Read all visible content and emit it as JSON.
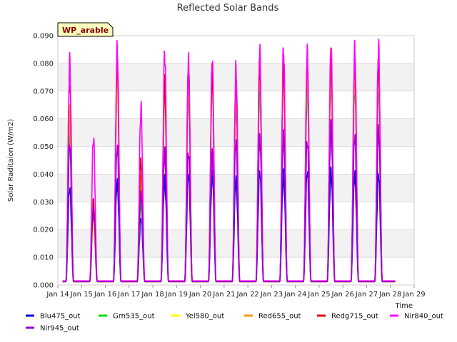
{
  "chart_data": {
    "type": "line",
    "title": "Reflected Solar Bands",
    "xlabel": "Time",
    "ylabel": "Solar Raditaion (W/m2)",
    "badge": "WP_arable",
    "ylim": [
      0.0,
      0.09
    ],
    "yticks": [
      "0.000",
      "0.010",
      "0.020",
      "0.030",
      "0.040",
      "0.050",
      "0.060",
      "0.070",
      "0.080",
      "0.090"
    ],
    "xlim": [
      14,
      29
    ],
    "xticks": [
      "Jan 14",
      "Jan 15",
      "Jan 16",
      "Jan 17",
      "Jan 18",
      "Jan 19",
      "Jan 20",
      "Jan 21",
      "Jan 22",
      "Jan 23",
      "Jan 24",
      "Jan 25",
      "Jan 26",
      "Jan 27",
      "Jan 28",
      "Jan 29"
    ],
    "day_centers": [
      14.5,
      15.5,
      16.5,
      17.5,
      18.5,
      19.5,
      20.5,
      21.5,
      22.5,
      23.5,
      24.5,
      25.5,
      26.5,
      27.5
    ],
    "series": [
      {
        "name": "Blu475_out",
        "color": "#0000dd",
        "baseline": 0.0012,
        "peaks": [
          0.035,
          0.023,
          0.037,
          0.024,
          0.038,
          0.04,
          0.04,
          0.038,
          0.041,
          0.04,
          0.041,
          0.041,
          0.04,
          0.04
        ]
      },
      {
        "name": "Grn535_out",
        "color": "#00dd00",
        "baseline": 0.0012,
        "peaks": [
          0.052,
          0.025,
          0.075,
          0.03,
          0.065,
          0.07,
          0.07,
          0.065,
          0.07,
          0.072,
          0.072,
          0.072,
          0.072,
          0.072
        ]
      },
      {
        "name": "Yel580_out",
        "color": "#ffff00",
        "baseline": 0.0012,
        "peaks": [
          0.058,
          0.022,
          0.072,
          0.036,
          0.068,
          0.072,
          0.072,
          0.068,
          0.075,
          0.075,
          0.075,
          0.076,
          0.075,
          0.075
        ]
      },
      {
        "name": "Red655_out",
        "color": "#ff9900",
        "baseline": 0.0012,
        "peaks": [
          0.062,
          0.025,
          0.078,
          0.038,
          0.07,
          0.075,
          0.075,
          0.07,
          0.078,
          0.078,
          0.078,
          0.079,
          0.078,
          0.078
        ]
      },
      {
        "name": "Redg715_out",
        "color": "#dd0000",
        "baseline": 0.0012,
        "peaks": [
          0.073,
          0.03,
          0.08,
          0.045,
          0.073,
          0.078,
          0.077,
          0.073,
          0.08,
          0.08,
          0.08,
          0.082,
          0.08,
          0.08
        ]
      },
      {
        "name": "Nir840_out",
        "color": "#ff00ff",
        "baseline": 0.0015,
        "peaks": [
          0.08,
          0.053,
          0.085,
          0.064,
          0.084,
          0.08,
          0.081,
          0.078,
          0.084,
          0.085,
          0.083,
          0.086,
          0.085,
          0.086
        ]
      },
      {
        "name": "Nir945_out",
        "color": "#9900cc",
        "baseline": 0.0012,
        "peaks": [
          0.051,
          0.027,
          0.05,
          0.033,
          0.048,
          0.048,
          0.047,
          0.052,
          0.053,
          0.054,
          0.052,
          0.057,
          0.054,
          0.056
        ]
      }
    ]
  }
}
